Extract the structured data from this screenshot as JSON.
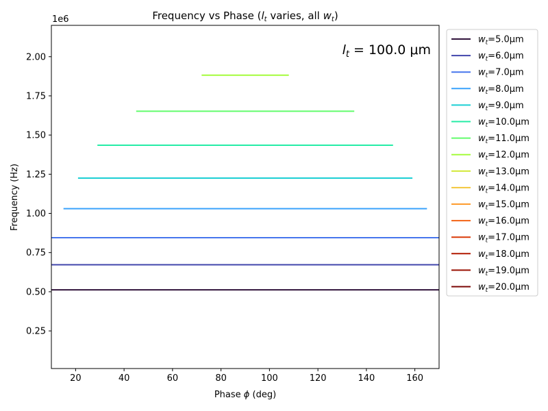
{
  "chart_data": {
    "type": "line",
    "title_prefix": "Frequency vs Phase (",
    "title_var1": "l",
    "title_sub1": "t",
    "title_middle": " varies, all ",
    "title_var2": "w",
    "title_sub2": "t",
    "title_suffix": ")",
    "xlabel_prefix": "Phase ",
    "xlabel_symbol": "ϕ",
    "xlabel_suffix": " (deg)",
    "ylabel": "Frequency (Hz)",
    "y_offset_label": "1e6",
    "xlim": [
      10,
      170
    ],
    "ylim": [
      0.01,
      2.2
    ],
    "x_ticks": [
      20,
      40,
      60,
      80,
      100,
      120,
      140,
      160
    ],
    "y_ticks": [
      0.25,
      0.5,
      0.75,
      1.0,
      1.25,
      1.5,
      1.75,
      2.0
    ],
    "y_tick_labels": [
      "0.25",
      "0.50",
      "0.75",
      "1.00",
      "1.25",
      "1.50",
      "1.75",
      "2.00"
    ],
    "grid": false,
    "legend_placement": "outside-right",
    "annotation": {
      "var": "l",
      "sub": "t",
      "text": " = 100.0 μm"
    },
    "series": [
      {
        "name": "w_t=5.0μm",
        "label_main": "w",
        "label_sub": "t",
        "label_rest": "=5.0μm",
        "color": "#30123b",
        "x": [
          10,
          170
        ],
        "y": [
          0.512,
          0.512
        ]
      },
      {
        "name": "w_t=6.0μm",
        "label_main": "w",
        "label_sub": "t",
        "label_rest": "=6.0μm",
        "color": "#4145ab",
        "x": [
          10,
          170
        ],
        "y": [
          0.672,
          0.672
        ]
      },
      {
        "name": "w_t=7.0μm",
        "label_main": "w",
        "label_sub": "t",
        "label_rest": "=7.0μm",
        "color": "#4675ed",
        "x": [
          10,
          170
        ],
        "y": [
          0.845,
          0.845
        ]
      },
      {
        "name": "w_t=8.0μm",
        "label_main": "w",
        "label_sub": "t",
        "label_rest": "=8.0μm",
        "color": "#39a2fc",
        "x": [
          15,
          165
        ],
        "y": [
          1.03,
          1.03
        ]
      },
      {
        "name": "w_t=9.0μm",
        "label_main": "w",
        "label_sub": "t",
        "label_rest": "=9.0μm",
        "color": "#1bcfd4",
        "x": [
          21,
          159
        ],
        "y": [
          1.225,
          1.225
        ]
      },
      {
        "name": "w_t=10.0μm",
        "label_main": "w",
        "label_sub": "t",
        "label_rest": "=10.0μm",
        "color": "#24eca6",
        "x": [
          29,
          151
        ],
        "y": [
          1.435,
          1.435
        ]
      },
      {
        "name": "w_t=11.0μm",
        "label_main": "w",
        "label_sub": "t",
        "label_rest": "=11.0μm",
        "color": "#61fc6c",
        "x": [
          45,
          135
        ],
        "y": [
          1.652,
          1.652
        ]
      },
      {
        "name": "w_t=12.0μm",
        "label_main": "w",
        "label_sub": "t",
        "label_rest": "=12.0μm",
        "color": "#a4fc3b",
        "x": [
          72,
          108
        ],
        "y": [
          1.882,
          1.882
        ]
      },
      {
        "name": "w_t=13.0μm",
        "label_main": "w",
        "label_sub": "t",
        "label_rest": "=13.0μm",
        "color": "#d1e834",
        "x": [],
        "y": []
      },
      {
        "name": "w_t=14.0μm",
        "label_main": "w",
        "label_sub": "t",
        "label_rest": "=14.0μm",
        "color": "#f3c63a",
        "x": [],
        "y": []
      },
      {
        "name": "w_t=15.0μm",
        "label_main": "w",
        "label_sub": "t",
        "label_rest": "=15.0μm",
        "color": "#fe9b2d",
        "x": [],
        "y": []
      },
      {
        "name": "w_t=16.0μm",
        "label_main": "w",
        "label_sub": "t",
        "label_rest": "=16.0μm",
        "color": "#f36315",
        "x": [],
        "y": []
      },
      {
        "name": "w_t=17.0μm",
        "label_main": "w",
        "label_sub": "t",
        "label_rest": "=17.0μm",
        "color": "#d93806",
        "x": [],
        "y": []
      },
      {
        "name": "w_t=18.0μm",
        "label_main": "w",
        "label_sub": "t",
        "label_rest": "=18.0μm",
        "color": "#b11901",
        "x": [],
        "y": []
      },
      {
        "name": "w_t=19.0μm",
        "label_main": "w",
        "label_sub": "t",
        "label_rest": "=19.0μm",
        "color": "#990f01",
        "x": [],
        "y": []
      },
      {
        "name": "w_t=20.0μm",
        "label_main": "w",
        "label_sub": "t",
        "label_rest": "=20.0μm",
        "color": "#7a0403",
        "x": [],
        "y": []
      }
    ]
  }
}
